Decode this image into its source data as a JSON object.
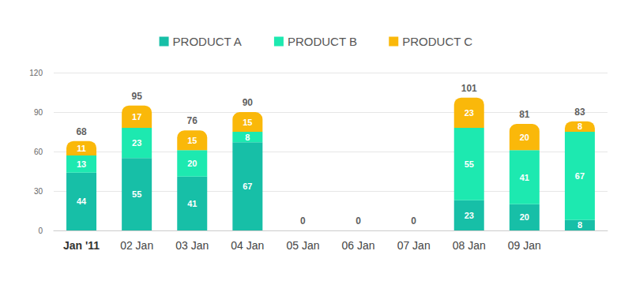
{
  "chart_data": {
    "type": "bar",
    "stacked": true,
    "data_labels": true,
    "grid": true,
    "legend": "top",
    "categories": [
      "Jan '11",
      "02 Jan",
      "03 Jan",
      "04 Jan",
      "05 Jan",
      "06 Jan",
      "07 Jan",
      "08 Jan",
      "09 Jan",
      null
    ],
    "series": [
      {
        "name": "PRODUCT A",
        "color": "#17bfa7",
        "values": [
          44,
          55,
          41,
          67,
          0,
          0,
          0,
          23,
          20,
          8
        ]
      },
      {
        "name": "PRODUCT B",
        "color": "#1de9b0",
        "values": [
          13,
          23,
          20,
          8,
          0,
          0,
          0,
          55,
          41,
          67
        ]
      },
      {
        "name": "PRODUCT C",
        "color": "#fab80a",
        "values": [
          11,
          17,
          15,
          15,
          0,
          0,
          0,
          23,
          20,
          8
        ]
      }
    ],
    "totals": [
      68,
      95,
      76,
      90,
      0,
      0,
      0,
      101,
      81,
      83
    ],
    "ylim": [
      0,
      120
    ],
    "yticks": [
      0,
      30,
      60,
      90,
      120
    ]
  }
}
